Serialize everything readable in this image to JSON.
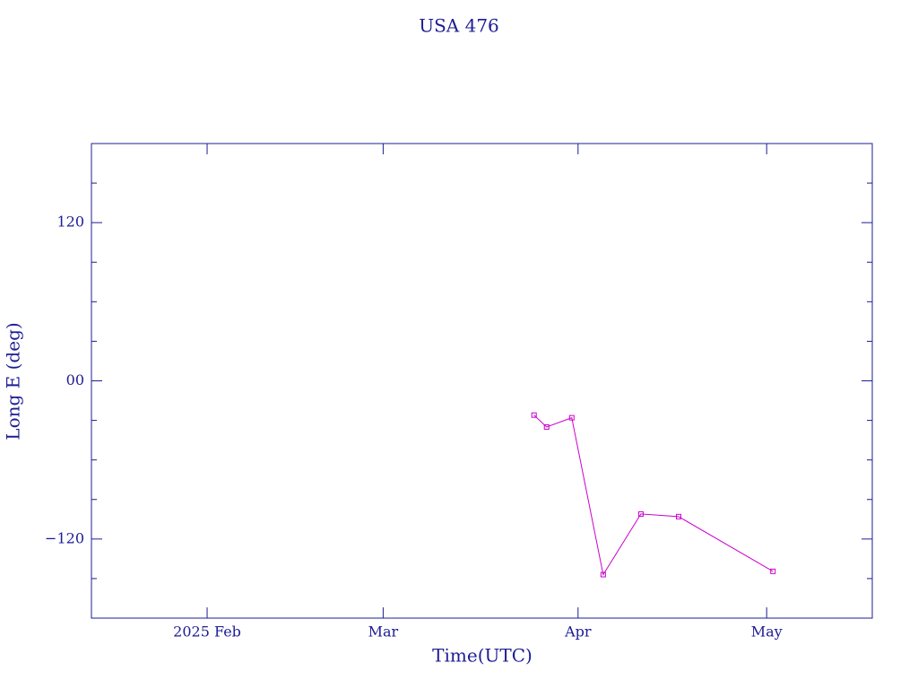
{
  "chart_data": {
    "type": "line",
    "title": "USA 476",
    "x_label": "Time(UTC)",
    "y_label": "Long E (deg)",
    "x": [
      84,
      86,
      90,
      95,
      101,
      107,
      122
    ],
    "series": [
      {
        "color": "#cc00cc",
        "values": [
          -26,
          -35,
          -28,
          -147,
          -101,
          -103,
          -144.5
        ]
      }
    ],
    "xlim": [
      13.6,
      137.8
    ],
    "xticks": [
      {
        "value": 32,
        "label": "2025 Feb"
      },
      {
        "value": 60,
        "label": "Mar"
      },
      {
        "value": 91,
        "label": "Apr"
      },
      {
        "value": 121,
        "label": "May"
      }
    ],
    "ylim": [
      -180,
      180
    ],
    "yticks": [
      {
        "value": -120,
        "label": "−120"
      },
      {
        "value": 0,
        "label": "00"
      },
      120
    ],
    "yminorticks": [
      -150,
      -90,
      -60,
      -30,
      30,
      60,
      90,
      150
    ],
    "axis_color": "#1c1c96"
  }
}
